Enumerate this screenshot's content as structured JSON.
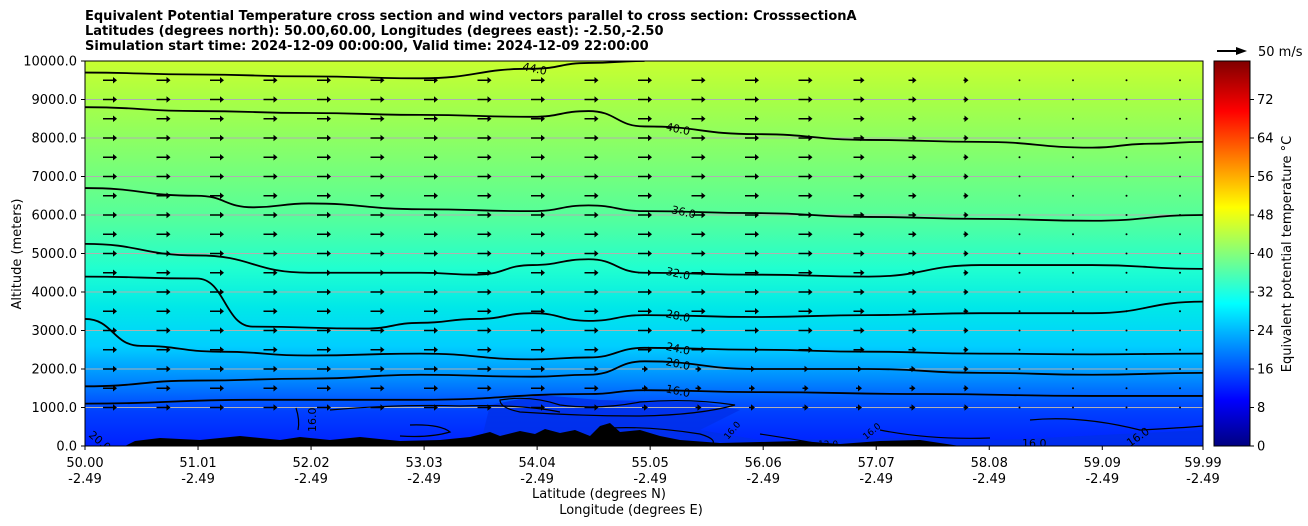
{
  "chart_data": {
    "type": "contour",
    "title_lines": [
      "Equivalent Potential Temperature cross section and wind vectors parallel to cross section: CrosssectionA",
      "Latitudes (degrees north): 50.00,60.00, Longitudes (degrees east): -2.50,-2.50",
      "Simulation start time: 2024-12-09 00:00:00, Valid time: 2024-12-09 22:00:00"
    ],
    "xlabel": "Latitude (degrees N)",
    "xlabel2": "Longitude (degrees E)",
    "ylabel": "Altitude (meters)",
    "xlim": [
      50.0,
      59.99
    ],
    "ylim": [
      0,
      10000
    ],
    "grid": "horizontal",
    "x_ticks": [
      {
        "lat": "50.00",
        "lon": "-2.49",
        "value": 50.0
      },
      {
        "lat": "51.01",
        "lon": "-2.49",
        "value": 51.01
      },
      {
        "lat": "52.02",
        "lon": "-2.49",
        "value": 52.02
      },
      {
        "lat": "53.03",
        "lon": "-2.49",
        "value": 53.03
      },
      {
        "lat": "54.04",
        "lon": "-2.49",
        "value": 54.04
      },
      {
        "lat": "55.05",
        "lon": "-2.49",
        "value": 55.05
      },
      {
        "lat": "56.06",
        "lon": "-2.49",
        "value": 56.06
      },
      {
        "lat": "57.07",
        "lon": "-2.49",
        "value": 57.07
      },
      {
        "lat": "58.08",
        "lon": "-2.49",
        "value": 58.08
      },
      {
        "lat": "59.09",
        "lon": "-2.49",
        "value": 59.09
      },
      {
        "lat": "59.99",
        "lon": "-2.49",
        "value": 59.99
      }
    ],
    "y_ticks": [
      {
        "label": "0.0",
        "value": 0
      },
      {
        "label": "1000.0",
        "value": 1000
      },
      {
        "label": "2000.0",
        "value": 2000
      },
      {
        "label": "3000.0",
        "value": 3000
      },
      {
        "label": "4000.0",
        "value": 4000
      },
      {
        "label": "5000.0",
        "value": 5000
      },
      {
        "label": "6000.0",
        "value": 6000
      },
      {
        "label": "7000.0",
        "value": 7000
      },
      {
        "label": "8000.0",
        "value": 8000
      },
      {
        "label": "9000.0",
        "value": 9000
      },
      {
        "label": "10000.0",
        "value": 10000
      }
    ],
    "colorbar": {
      "label": "Equivalent potential temperature °C",
      "range": [
        0,
        80
      ],
      "ticks": [
        {
          "label": "0",
          "value": 0
        },
        {
          "label": "8",
          "value": 8
        },
        {
          "label": "16",
          "value": 16
        },
        {
          "label": "24",
          "value": 24
        },
        {
          "label": "32",
          "value": 32
        },
        {
          "label": "40",
          "value": 40
        },
        {
          "label": "48",
          "value": 48
        },
        {
          "label": "56",
          "value": 56
        },
        {
          "label": "64",
          "value": 64
        },
        {
          "label": "72",
          "value": 72
        }
      ],
      "colormap": "jet"
    },
    "wind_key": {
      "label": "50 m/s",
      "value": 50
    },
    "contours": [
      {
        "level": 16,
        "label": "16.0",
        "pts": [
          [
            50.0,
            1100
          ],
          [
            51.5,
            1200
          ],
          [
            53.0,
            1200
          ],
          [
            54.5,
            1350
          ],
          [
            55.0,
            1450
          ],
          [
            56.0,
            1400
          ],
          [
            57.5,
            1350
          ],
          [
            59.0,
            1300
          ],
          [
            59.99,
            1300
          ]
        ]
      },
      {
        "level": 20,
        "label": "20.0",
        "pts": [
          [
            50.0,
            1550
          ],
          [
            51.0,
            1700
          ],
          [
            52.0,
            1750
          ],
          [
            53.0,
            1850
          ],
          [
            54.0,
            1800
          ],
          [
            54.5,
            1850
          ],
          [
            55.0,
            2200
          ],
          [
            56.0,
            2000
          ],
          [
            57.0,
            2000
          ],
          [
            58.0,
            1900
          ],
          [
            59.0,
            1850
          ],
          [
            59.99,
            1900
          ]
        ]
      },
      {
        "level": 24,
        "label": "24.0",
        "pts": [
          [
            50.0,
            3300
          ],
          [
            50.5,
            2600
          ],
          [
            51.2,
            2450
          ],
          [
            52.0,
            2350
          ],
          [
            53.0,
            2400
          ],
          [
            54.0,
            2250
          ],
          [
            54.5,
            2300
          ],
          [
            55.0,
            2550
          ],
          [
            56.0,
            2500
          ],
          [
            57.0,
            2450
          ],
          [
            58.0,
            2400
          ],
          [
            59.0,
            2380
          ],
          [
            59.99,
            2400
          ]
        ]
      },
      {
        "level": 28,
        "label": "28.0",
        "pts": [
          [
            50.0,
            4400
          ],
          [
            51.0,
            4350
          ],
          [
            51.5,
            3100
          ],
          [
            52.5,
            3050
          ],
          [
            53.0,
            3200
          ],
          [
            53.5,
            3300
          ],
          [
            54.0,
            3450
          ],
          [
            54.5,
            3250
          ],
          [
            55.0,
            3400
          ],
          [
            56.0,
            3350
          ],
          [
            57.0,
            3400
          ],
          [
            58.0,
            3450
          ],
          [
            59.0,
            3450
          ],
          [
            59.99,
            3750
          ]
        ]
      },
      {
        "level": 32,
        "label": "32.0",
        "pts": [
          [
            50.0,
            5250
          ],
          [
            51.0,
            4950
          ],
          [
            52.0,
            4500
          ],
          [
            53.0,
            4500
          ],
          [
            53.5,
            4450
          ],
          [
            54.0,
            4700
          ],
          [
            54.5,
            4850
          ],
          [
            55.0,
            4500
          ],
          [
            56.0,
            4450
          ],
          [
            57.0,
            4400
          ],
          [
            58.0,
            4700
          ],
          [
            59.0,
            4700
          ],
          [
            59.99,
            4600
          ]
        ]
      },
      {
        "level": 36,
        "label": "36.0",
        "pts": [
          [
            50.0,
            6700
          ],
          [
            51.0,
            6500
          ],
          [
            51.5,
            6200
          ],
          [
            52.0,
            6300
          ],
          [
            53.0,
            6150
          ],
          [
            54.0,
            6100
          ],
          [
            54.5,
            6250
          ],
          [
            55.0,
            6100
          ],
          [
            56.0,
            6050
          ],
          [
            57.0,
            5950
          ],
          [
            58.0,
            5900
          ],
          [
            59.0,
            5850
          ],
          [
            59.99,
            6000
          ]
        ]
      },
      {
        "level": 40,
        "label": "40.0",
        "pts": [
          [
            50.0,
            8800
          ],
          [
            51.0,
            8700
          ],
          [
            52.0,
            8650
          ],
          [
            53.0,
            8600
          ],
          [
            54.0,
            8550
          ],
          [
            54.5,
            8700
          ],
          [
            55.0,
            8300
          ],
          [
            56.0,
            8100
          ],
          [
            57.0,
            7950
          ],
          [
            58.0,
            7900
          ],
          [
            59.0,
            7750
          ],
          [
            59.5,
            7850
          ],
          [
            59.99,
            7900
          ]
        ]
      },
      {
        "level": 44,
        "label": "44.0",
        "pts": [
          [
            50.0,
            9700
          ],
          [
            51.0,
            9650
          ],
          [
            52.0,
            9600
          ],
          [
            53.0,
            9550
          ],
          [
            54.0,
            9800
          ],
          [
            54.5,
            9950
          ],
          [
            55.0,
            10000
          ]
        ]
      }
    ]
  }
}
